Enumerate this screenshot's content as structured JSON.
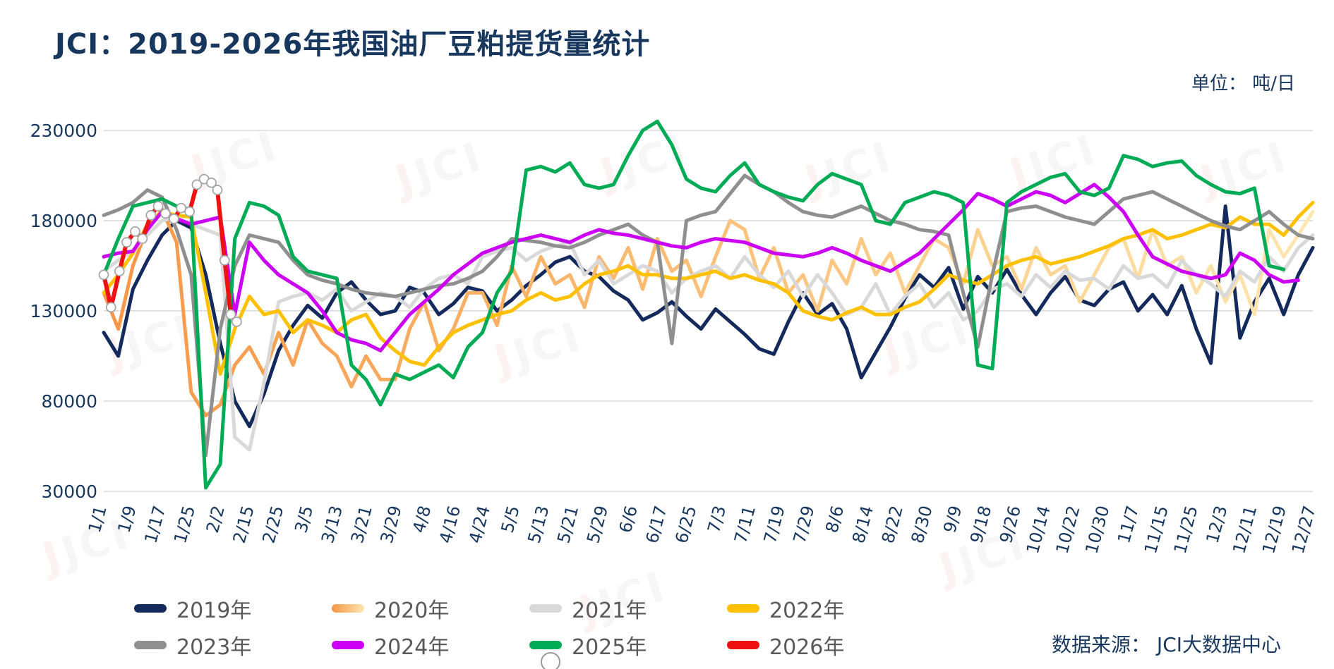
{
  "page": {
    "title": "JCI：2019-2026年我国油厂豆粕提货量统计",
    "unit_label": "单位： 吨/日",
    "source_label": "数据来源： JCI大数据中心",
    "watermark_j": "J",
    "watermark_text": "JCI",
    "colors": {
      "title": "#17375e",
      "axis_text": "#17375e",
      "gridline": "#d8d8d8",
      "legend_text": "#595959",
      "marker_fill": "#ffffff",
      "marker_stroke": "#a6a6a6"
    }
  },
  "chart_data": {
    "type": "line",
    "title": "JCI：2019-2026年我国油厂豆粕提货量统计",
    "unit": "吨/日",
    "source": "JCI大数据中心",
    "legend_position": "bottom",
    "grid": true,
    "y_axis": {
      "min": 30000,
      "max": 230000,
      "ticks": [
        230000,
        180000,
        130000,
        80000,
        30000
      ]
    },
    "x_axis": {
      "tick_labels": [
        "1/1",
        "1/9",
        "1/17",
        "1/25",
        "2/2",
        "2/15",
        "2/25",
        "3/5",
        "3/13",
        "3/21",
        "3/29",
        "4/8",
        "4/16",
        "4/24",
        "5/5",
        "5/13",
        "5/21",
        "5/29",
        "6/6",
        "6/17",
        "6/25",
        "7/3",
        "7/11",
        "7/19",
        "7/29",
        "8/6",
        "8/14",
        "8/22",
        "8/30",
        "9/9",
        "9/18",
        "9/26",
        "10/14",
        "10/22",
        "10/30",
        "11/7",
        "11/15",
        "11/25",
        "12/3",
        "12/11",
        "12/19",
        "12/27"
      ]
    },
    "series": [
      {
        "name": "2019年",
        "color": "#14295c",
        "width": 5,
        "values": [
          118000,
          105000,
          142000,
          158000,
          172000,
          180000,
          176000,
          150000,
          112000,
          80000,
          66000,
          84000,
          108000,
          122000,
          133000,
          126000,
          140000,
          146000,
          136000,
          128000,
          130000,
          143000,
          140000,
          128000,
          134000,
          143000,
          141000,
          130000,
          136000,
          144000,
          150000,
          157000,
          160000,
          152000,
          149000,
          141000,
          136000,
          125000,
          129000,
          135000,
          127000,
          120000,
          131000,
          124000,
          117000,
          109000,
          106000,
          124000,
          140000,
          128000,
          134000,
          120000,
          93000,
          107000,
          121000,
          137000,
          150000,
          143000,
          154000,
          131000,
          149000,
          140000,
          153000,
          139000,
          128000,
          140000,
          149000,
          136000,
          133000,
          142000,
          146000,
          130000,
          139000,
          128000,
          144000,
          120000,
          101000,
          188000,
          115000,
          135000,
          148000,
          128000,
          150000,
          165000
        ]
      },
      {
        "name": "2020年",
        "color": "#f79646",
        "color_end": "#fde7b0",
        "gradient": true,
        "width": 5,
        "values": [
          140000,
          120000,
          155000,
          176000,
          186000,
          168000,
          85000,
          72000,
          78000,
          100000,
          110000,
          95000,
          118000,
          100000,
          125000,
          112000,
          105000,
          88000,
          105000,
          92000,
          92000,
          120000,
          135000,
          108000,
          120000,
          140000,
          140000,
          122000,
          155000,
          138000,
          160000,
          145000,
          150000,
          132000,
          160000,
          148000,
          165000,
          142000,
          170000,
          152000,
          158000,
          138000,
          160000,
          180000,
          175000,
          148000,
          165000,
          140000,
          150000,
          130000,
          158000,
          145000,
          170000,
          150000,
          162000,
          140000,
          155000,
          170000,
          165000,
          145000,
          175000,
          155000,
          160000,
          142000,
          165000,
          150000,
          155000,
          135000,
          150000,
          165000,
          170000,
          148000,
          175000,
          155000,
          160000,
          140000,
          155000,
          135000,
          150000,
          128000,
          175000,
          160000,
          172000,
          185000
        ]
      },
      {
        "name": "2021年",
        "color": "#d9d9d9",
        "width": 5,
        "values": [
          152000,
          158000,
          163000,
          172000,
          180000,
          182000,
          178000,
          175000,
          172000,
          60000,
          53000,
          90000,
          135000,
          138000,
          140000,
          136000,
          142000,
          130000,
          135000,
          140000,
          138000,
          132000,
          142000,
          148000,
          150000,
          145000,
          160000,
          163000,
          165000,
          158000,
          163000,
          166000,
          168000,
          150000,
          158000,
          145000,
          150000,
          155000,
          152000,
          140000,
          148000,
          152000,
          155000,
          148000,
          160000,
          150000,
          143000,
          152000,
          138000,
          150000,
          140000,
          128000,
          132000,
          145000,
          128000,
          138000,
          145000,
          132000,
          140000,
          125000,
          130000,
          142000,
          145000,
          138000,
          150000,
          143000,
          152000,
          147000,
          148000,
          142000,
          155000,
          148000,
          150000,
          143000,
          158000,
          150000,
          145000,
          138000,
          152000,
          146000,
          160000,
          152000,
          165000,
          172000
        ]
      },
      {
        "name": "2022年",
        "color": "#ffc000",
        "width": 5,
        "values": [
          140000,
          150000,
          162000,
          178000,
          185000,
          183000,
          182000,
          140000,
          95000,
          120000,
          138000,
          128000,
          130000,
          118000,
          125000,
          122000,
          118000,
          125000,
          128000,
          115000,
          108000,
          102000,
          100000,
          110000,
          118000,
          122000,
          125000,
          128000,
          130000,
          136000,
          140000,
          136000,
          138000,
          145000,
          150000,
          152000,
          155000,
          150000,
          150000,
          148000,
          148000,
          150000,
          152000,
          148000,
          150000,
          147000,
          145000,
          140000,
          130000,
          127000,
          125000,
          129000,
          132000,
          128000,
          128000,
          132000,
          135000,
          142000,
          150000,
          147000,
          145000,
          150000,
          155000,
          158000,
          160000,
          156000,
          158000,
          160000,
          163000,
          166000,
          170000,
          172000,
          175000,
          170000,
          172000,
          175000,
          178000,
          176000,
          182000,
          178000,
          178000,
          172000,
          182000,
          190000
        ]
      },
      {
        "name": "2023年",
        "color": "#8f8f8f",
        "width": 5,
        "values": [
          183000,
          186000,
          190000,
          197000,
          193000,
          175000,
          150000,
          50000,
          120000,
          155000,
          172000,
          170000,
          168000,
          158000,
          150000,
          147000,
          145000,
          142000,
          140000,
          139000,
          138000,
          140000,
          142000,
          144000,
          145000,
          148000,
          152000,
          160000,
          170000,
          169000,
          168000,
          166000,
          165000,
          168000,
          172000,
          175000,
          178000,
          172000,
          168000,
          112000,
          180000,
          183000,
          185000,
          195000,
          205000,
          200000,
          196000,
          190000,
          185000,
          183000,
          182000,
          185000,
          188000,
          184000,
          180000,
          178000,
          175000,
          174000,
          172000,
          140000,
          110000,
          150000,
          185000,
          187000,
          188000,
          185000,
          182000,
          180000,
          178000,
          185000,
          192000,
          194000,
          196000,
          192000,
          188000,
          184000,
          180000,
          177000,
          175000,
          180000,
          185000,
          178000,
          172000,
          170000
        ]
      },
      {
        "name": "2024年",
        "color": "#cb00f5",
        "width": 5,
        "values": [
          160000,
          162000,
          163000,
          175000,
          185000,
          181000,
          178000,
          180000,
          182000,
          128000,
          168000,
          158000,
          150000,
          145000,
          140000,
          130000,
          118000,
          114000,
          112000,
          108000,
          118000,
          128000,
          135000,
          142000,
          150000,
          156000,
          162000,
          165000,
          168000,
          170000,
          172000,
          170000,
          168000,
          172000,
          175000,
          173000,
          172000,
          170000,
          168000,
          166000,
          165000,
          168000,
          170000,
          169000,
          168000,
          165000,
          162000,
          161000,
          160000,
          162000,
          165000,
          162000,
          158000,
          155000,
          152000,
          157000,
          162000,
          170000,
          178000,
          186000,
          195000,
          192000,
          188000,
          192000,
          196000,
          194000,
          190000,
          195000,
          200000,
          193000,
          185000,
          172000,
          160000,
          156000,
          152000,
          150000,
          148000,
          150000,
          162000,
          158000,
          150000,
          146000,
          147000,
          null
        ]
      },
      {
        "name": "2025年",
        "color": "#00ab55",
        "width": 5,
        "values": [
          150000,
          170000,
          188000,
          190000,
          192000,
          188000,
          186000,
          32000,
          45000,
          170000,
          190000,
          188000,
          183000,
          160000,
          152000,
          150000,
          148000,
          100000,
          92000,
          78000,
          95000,
          92000,
          96000,
          100000,
          93000,
          110000,
          118000,
          140000,
          152000,
          208000,
          210000,
          207000,
          212000,
          200000,
          198000,
          200000,
          216000,
          230000,
          235000,
          222000,
          203000,
          198000,
          196000,
          205000,
          212000,
          200000,
          196000,
          193000,
          191000,
          200000,
          206000,
          203000,
          200000,
          180000,
          178000,
          190000,
          193000,
          196000,
          194000,
          190000,
          100000,
          98000,
          190000,
          196000,
          200000,
          204000,
          206000,
          196000,
          194000,
          198000,
          216000,
          214000,
          210000,
          212000,
          213000,
          205000,
          200000,
          196000,
          195000,
          198000,
          155000,
          153000,
          null,
          null
        ]
      },
      {
        "name": "2026年",
        "color": "#ed1111",
        "width": 6,
        "markers": true,
        "points": [
          [
            0.0,
            150000
          ],
          [
            0.006,
            132000
          ],
          [
            0.013,
            152000
          ],
          [
            0.019,
            168000
          ],
          [
            0.026,
            174000
          ],
          [
            0.032,
            170000
          ],
          [
            0.039,
            183000
          ],
          [
            0.045,
            188000
          ],
          [
            0.051,
            184000
          ],
          [
            0.058,
            181000
          ],
          [
            0.064,
            187000
          ],
          [
            0.071,
            185000
          ],
          [
            0.077,
            200000
          ],
          [
            0.083,
            203000
          ],
          [
            0.089,
            201000
          ],
          [
            0.094,
            197000
          ],
          [
            0.1,
            158000
          ],
          [
            0.105,
            128000
          ],
          [
            0.11,
            124000
          ]
        ]
      }
    ]
  }
}
